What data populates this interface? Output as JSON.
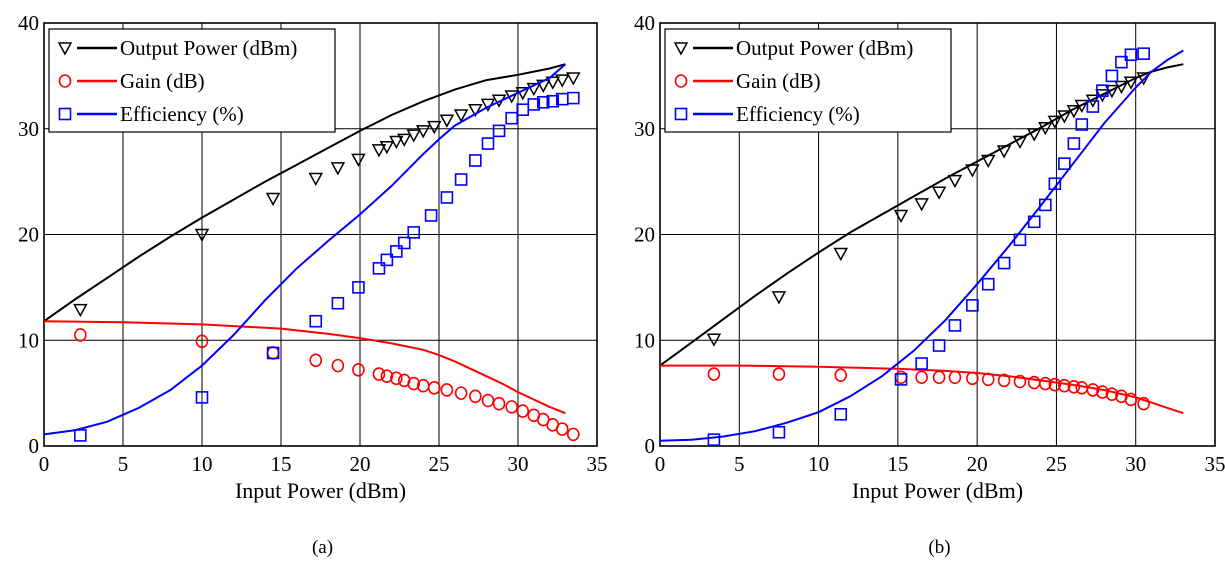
{
  "chart_data": [
    {
      "type": "line",
      "caption": "(a)",
      "xlabel": "Input Power (dBm)",
      "ylabel": "",
      "xlim": [
        0,
        35
      ],
      "ylim": [
        0,
        40
      ],
      "xticks": [
        0,
        5,
        10,
        15,
        20,
        25,
        30,
        35
      ],
      "yticks": [
        0,
        10,
        20,
        30,
        40
      ],
      "grid": true,
      "legend_position": "top-left",
      "legend": [
        "Output Power (dBm)",
        "Gain (dB)",
        "Efficiency (%)"
      ],
      "series": [
        {
          "name": "Output Power (dBm)",
          "color": "#000000",
          "marker": "triangle-down",
          "measured": {
            "x": [
              2.3,
              10,
              14.5,
              17.2,
              18.6,
              19.9,
              21.2,
              21.7,
              22.3,
              22.8,
              23.4,
              24.0,
              24.7,
              25.5,
              26.4,
              27.3,
              28.1,
              28.8,
              29.6,
              30.3,
              31.0,
              31.6,
              32.2,
              32.8,
              33.5
            ],
            "y": [
              12.9,
              20.0,
              23.4,
              25.3,
              26.3,
              27.1,
              28.0,
              28.3,
              28.8,
              29.0,
              29.4,
              29.8,
              30.2,
              30.8,
              31.3,
              31.8,
              32.3,
              32.7,
              33.1,
              33.4,
              33.8,
              34.1,
              34.4,
              34.6,
              34.8
            ]
          },
          "simulated": {
            "x": [
              0,
              2,
              4,
              6,
              8,
              10,
              12,
              14,
              16,
              18,
              20,
              22,
              24,
              26,
              28,
              30,
              31,
              32,
              33
            ],
            "y": [
              11.8,
              13.9,
              15.9,
              17.9,
              19.8,
              21.6,
              23.3,
              25.0,
              26.6,
              28.2,
              29.8,
              31.3,
              32.6,
              33.7,
              34.6,
              35.1,
              35.4,
              35.7,
              36.1
            ]
          }
        },
        {
          "name": "Gain (dB)",
          "color": "#ff0000",
          "marker": "circle",
          "measured": {
            "x": [
              2.3,
              10,
              14.5,
              17.2,
              18.6,
              19.9,
              21.2,
              21.7,
              22.3,
              22.8,
              23.4,
              24.0,
              24.7,
              25.5,
              26.4,
              27.3,
              28.1,
              28.8,
              29.6,
              30.3,
              31.0,
              31.6,
              32.2,
              32.8,
              33.5
            ],
            "y": [
              10.5,
              9.9,
              8.8,
              8.1,
              7.6,
              7.2,
              6.8,
              6.6,
              6.4,
              6.2,
              5.9,
              5.7,
              5.5,
              5.3,
              5.0,
              4.7,
              4.3,
              4.0,
              3.7,
              3.3,
              2.9,
              2.5,
              2.0,
              1.6,
              1.1
            ]
          },
          "simulated": {
            "x": [
              0,
              5,
              10,
              15,
              18,
              20,
              22,
              24,
              25,
              26,
              27,
              28,
              29,
              30,
              31,
              32,
              33
            ],
            "y": [
              11.8,
              11.7,
              11.5,
              11.1,
              10.6,
              10.2,
              9.7,
              9.1,
              8.6,
              8.0,
              7.3,
              6.6,
              5.9,
              5.1,
              4.4,
              3.7,
              3.1
            ]
          }
        },
        {
          "name": "Efficiency (%)",
          "color": "#0000ff",
          "marker": "square",
          "measured": {
            "x": [
              2.3,
              10,
              14.5,
              17.2,
              18.6,
              19.9,
              21.2,
              21.7,
              22.3,
              22.8,
              23.4,
              24.5,
              25.5,
              26.4,
              27.3,
              28.1,
              28.8,
              29.6,
              30.3,
              31.0,
              31.6,
              32.2,
              32.8,
              33.5
            ],
            "y": [
              1.0,
              4.6,
              8.8,
              11.8,
              13.5,
              15.0,
              16.8,
              17.6,
              18.4,
              19.2,
              20.2,
              21.8,
              23.5,
              25.2,
              27.0,
              28.6,
              29.8,
              31.0,
              31.8,
              32.3,
              32.5,
              32.6,
              32.8,
              32.9
            ]
          },
          "simulated": {
            "x": [
              0,
              2,
              4,
              6,
              8,
              10,
              12,
              14,
              16,
              18,
              20,
              22,
              24,
              25,
              26,
              28,
              30,
              32,
              33
            ],
            "y": [
              1.1,
              1.5,
              2.3,
              3.6,
              5.3,
              7.6,
              10.5,
              13.8,
              16.8,
              19.4,
              21.9,
              24.6,
              27.6,
              29.0,
              30.3,
              32.0,
              33.4,
              34.8,
              36.1
            ]
          }
        }
      ]
    },
    {
      "type": "line",
      "caption": "(b)",
      "xlabel": "Input Power (dBm)",
      "ylabel": "",
      "xlim": [
        0,
        35
      ],
      "ylim": [
        0,
        40
      ],
      "xticks": [
        0,
        5,
        10,
        15,
        20,
        25,
        30,
        35
      ],
      "yticks": [
        0,
        10,
        20,
        30,
        40
      ],
      "grid": true,
      "legend_position": "top-left",
      "legend": [
        "Output Power (dBm)",
        "Gain (dB)",
        "Efficiency (%)"
      ],
      "series": [
        {
          "name": "Output Power (dBm)",
          "color": "#000000",
          "marker": "triangle-down",
          "measured": {
            "x": [
              3.4,
              7.5,
              11.4,
              15.2,
              16.5,
              17.6,
              18.6,
              19.7,
              20.7,
              21.7,
              22.7,
              23.6,
              24.3,
              24.9,
              25.5,
              26.1,
              26.6,
              27.3,
              27.9,
              28.5,
              29.1,
              29.7,
              30.5
            ],
            "y": [
              10.1,
              14.1,
              18.2,
              21.8,
              22.9,
              24.0,
              25.1,
              26.1,
              27.0,
              27.9,
              28.8,
              29.5,
              30.1,
              30.7,
              31.2,
              31.7,
              32.2,
              32.7,
              33.2,
              33.6,
              34.0,
              34.4,
              34.8
            ]
          },
          "simulated": {
            "x": [
              0,
              2,
              4,
              6,
              8,
              10,
              12,
              14,
              16,
              18,
              20,
              22,
              24,
              26,
              28,
              30,
              31,
              32,
              33
            ],
            "y": [
              7.6,
              9.8,
              12.0,
              14.2,
              16.3,
              18.3,
              20.2,
              21.9,
              23.6,
              25.3,
              26.9,
              28.5,
              30.1,
              31.8,
              33.3,
              34.8,
              35.4,
              35.8,
              36.1
            ]
          }
        },
        {
          "name": "Gain (dB)",
          "color": "#ff0000",
          "marker": "circle",
          "measured": {
            "x": [
              3.4,
              7.5,
              11.4,
              15.2,
              16.5,
              17.6,
              18.6,
              19.7,
              20.7,
              21.7,
              22.7,
              23.6,
              24.3,
              24.9,
              25.5,
              26.1,
              26.6,
              27.3,
              27.9,
              28.5,
              29.1,
              29.7,
              30.5
            ],
            "y": [
              6.8,
              6.8,
              6.7,
              6.5,
              6.5,
              6.5,
              6.5,
              6.4,
              6.3,
              6.2,
              6.1,
              6.0,
              5.9,
              5.8,
              5.7,
              5.6,
              5.5,
              5.3,
              5.1,
              4.9,
              4.7,
              4.4,
              4.0
            ]
          },
          "simulated": {
            "x": [
              0,
              5,
              10,
              15,
              18,
              20,
              22,
              24,
              26,
              28,
              30,
              31,
              32,
              33
            ],
            "y": [
              7.6,
              7.6,
              7.5,
              7.3,
              7.1,
              6.9,
              6.6,
              6.2,
              5.8,
              5.3,
              4.6,
              4.1,
              3.6,
              3.1
            ]
          }
        },
        {
          "name": "Efficiency (%)",
          "color": "#0000ff",
          "marker": "square",
          "measured": {
            "x": [
              3.4,
              7.5,
              11.4,
              15.2,
              16.5,
              17.6,
              18.6,
              19.7,
              20.7,
              21.7,
              22.7,
              23.6,
              24.3,
              24.9,
              25.5,
              26.1,
              26.6,
              27.3,
              27.9,
              28.5,
              29.1,
              29.7,
              30.5
            ],
            "y": [
              0.6,
              1.3,
              3.0,
              6.3,
              7.8,
              9.5,
              11.4,
              13.3,
              15.3,
              17.3,
              19.5,
              21.2,
              22.8,
              24.8,
              26.7,
              28.6,
              30.4,
              32.1,
              33.6,
              35.0,
              36.3,
              37.0,
              37.1
            ]
          },
          "simulated": {
            "x": [
              0,
              2,
              4,
              6,
              8,
              10,
              12,
              14,
              16,
              18,
              20,
              22,
              24,
              26,
              28,
              30,
              31,
              32,
              33
            ],
            "y": [
              0.5,
              0.6,
              0.9,
              1.4,
              2.2,
              3.2,
              4.7,
              6.6,
              9.0,
              11.9,
              15.3,
              18.9,
              22.7,
              26.6,
              30.5,
              33.9,
              35.4,
              36.5,
              37.4
            ]
          }
        }
      ]
    }
  ]
}
